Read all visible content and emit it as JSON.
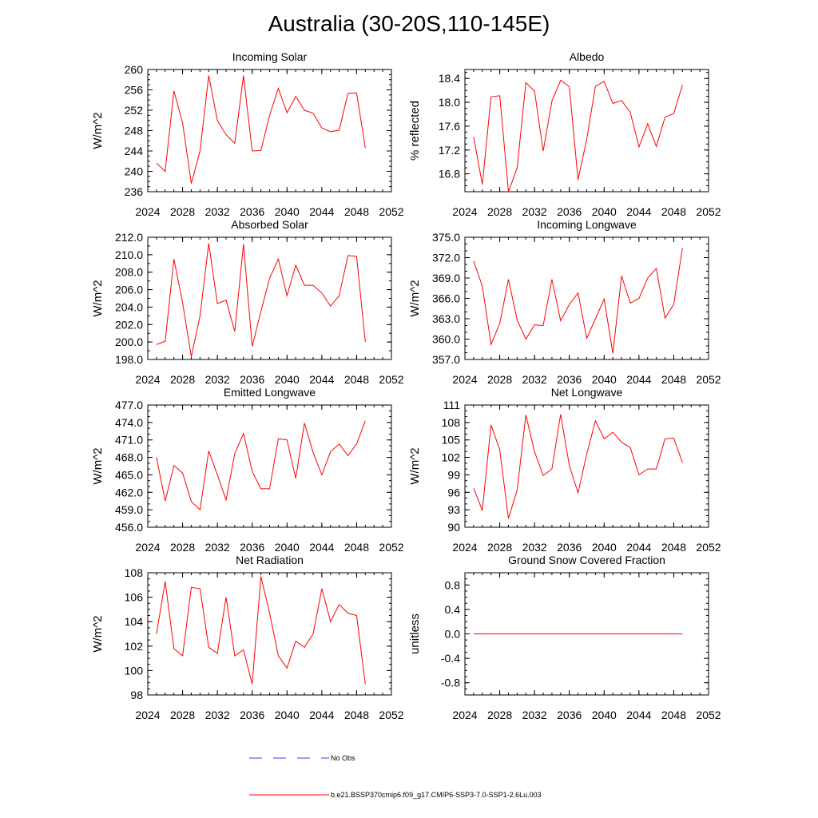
{
  "figure": {
    "title": "Australia (30-20S,110-145E)"
  },
  "legend": {
    "obs_label": "No Obs",
    "model_label": "b.e21.BSSP370cmip6.f09_g17.CMIP6-SSP3-7.0-SSP1-2.6Lu.003",
    "obs_color": "#3b3bff",
    "model_color": "#ff0000"
  },
  "chart_data": [
    {
      "type": "line",
      "title": "Incoming Solar",
      "ylabel": "W/m^2",
      "xlim": [
        2024,
        2052
      ],
      "ylim": [
        236,
        260
      ],
      "xticks": [
        2024,
        2028,
        2032,
        2036,
        2040,
        2044,
        2048,
        2052
      ],
      "yticks": [
        236,
        240,
        244,
        248,
        252,
        256,
        260
      ],
      "yminor": 1,
      "ydecimals": 0,
      "x": [
        2025,
        2026,
        2027,
        2028,
        2029,
        2030,
        2031,
        2032,
        2033,
        2034,
        2035,
        2036,
        2037,
        2038,
        2039,
        2040,
        2041,
        2042,
        2043,
        2044,
        2045,
        2046,
        2047,
        2048,
        2049
      ],
      "series": [
        {
          "values": [
            241.6,
            240.0,
            255.8,
            249.5,
            237.6,
            244.0,
            258.8,
            250.0,
            247.2,
            245.5,
            258.8,
            244.0,
            244.1,
            251.0,
            256.3,
            251.5,
            254.7,
            252.0,
            251.4,
            248.5,
            247.8,
            248.1,
            255.3,
            255.4,
            244.6
          ]
        }
      ]
    },
    {
      "type": "line",
      "title": "Albedo",
      "ylabel": "% reflected",
      "xlim": [
        2024,
        2052
      ],
      "ylim": [
        16.5,
        18.55
      ],
      "xticks": [
        2024,
        2028,
        2032,
        2036,
        2040,
        2044,
        2048,
        2052
      ],
      "yticks": [
        16.8,
        17.2,
        17.6,
        18.0,
        18.4
      ],
      "yminor": 0.1,
      "ydecimals": 1,
      "x": [
        2025,
        2026,
        2027,
        2028,
        2029,
        2030,
        2031,
        2032,
        2033,
        2034,
        2035,
        2036,
        2037,
        2038,
        2039,
        2040,
        2041,
        2042,
        2043,
        2044,
        2045,
        2046,
        2047,
        2048,
        2049
      ],
      "series": [
        {
          "values": [
            17.42,
            16.62,
            18.09,
            18.11,
            16.5,
            16.9,
            18.33,
            18.19,
            17.18,
            18.02,
            18.37,
            18.26,
            16.7,
            17.38,
            18.27,
            18.35,
            17.98,
            18.03,
            17.83,
            17.25,
            17.64,
            17.26,
            17.75,
            17.81,
            18.29
          ]
        }
      ]
    },
    {
      "type": "line",
      "title": "Absorbed Solar",
      "ylabel": "W/m^2",
      "xlim": [
        2024,
        2052
      ],
      "ylim": [
        198.0,
        212.0
      ],
      "xticks": [
        2024,
        2028,
        2032,
        2036,
        2040,
        2044,
        2048,
        2052
      ],
      "yticks": [
        198.0,
        200.0,
        202.0,
        204.0,
        206.0,
        208.0,
        210.0,
        212.0
      ],
      "yminor": 1,
      "ydecimals": 1,
      "x": [
        2025,
        2026,
        2027,
        2028,
        2029,
        2030,
        2031,
        2032,
        2033,
        2034,
        2035,
        2036,
        2037,
        2038,
        2039,
        2040,
        2041,
        2042,
        2043,
        2044,
        2045,
        2046,
        2047,
        2048,
        2049
      ],
      "series": [
        {
          "values": [
            199.7,
            200.1,
            209.5,
            204.5,
            198.3,
            203.0,
            211.3,
            204.4,
            204.8,
            201.2,
            211.2,
            199.5,
            203.5,
            207.3,
            209.5,
            205.3,
            208.8,
            206.5,
            206.5,
            205.6,
            204.1,
            205.3,
            209.9,
            209.8,
            200.0
          ]
        }
      ]
    },
    {
      "type": "line",
      "title": "Incoming Longwave",
      "ylabel": "W/m^2",
      "xlim": [
        2024,
        2052
      ],
      "ylim": [
        357.0,
        375.0
      ],
      "xticks": [
        2024,
        2028,
        2032,
        2036,
        2040,
        2044,
        2048,
        2052
      ],
      "yticks": [
        357.0,
        360.0,
        363.0,
        366.0,
        369.0,
        372.0,
        375.0
      ],
      "yminor": 1,
      "ydecimals": 1,
      "x": [
        2025,
        2026,
        2027,
        2028,
        2029,
        2030,
        2031,
        2032,
        2033,
        2034,
        2035,
        2036,
        2037,
        2038,
        2039,
        2040,
        2041,
        2042,
        2043,
        2044,
        2045,
        2046,
        2047,
        2048,
        2049
      ],
      "series": [
        {
          "values": [
            371.5,
            367.8,
            359.2,
            362.3,
            368.8,
            362.8,
            360.0,
            362.1,
            362.0,
            368.8,
            362.7,
            365.1,
            366.8,
            360.1,
            363.0,
            365.9,
            357.9,
            369.3,
            365.3,
            366.0,
            369.0,
            370.4,
            363.1,
            365.1,
            373.4
          ]
        }
      ]
    },
    {
      "type": "line",
      "title": "Emitted Longwave",
      "ylabel": "W/m^2",
      "xlim": [
        2024,
        2052
      ],
      "ylim": [
        456.0,
        477.0
      ],
      "xticks": [
        2024,
        2028,
        2032,
        2036,
        2040,
        2044,
        2048,
        2052
      ],
      "yticks": [
        456.0,
        459.0,
        462.0,
        465.0,
        468.0,
        471.0,
        474.0,
        477.0
      ],
      "yminor": 1,
      "ydecimals": 1,
      "x": [
        2025,
        2026,
        2027,
        2028,
        2029,
        2030,
        2031,
        2032,
        2033,
        2034,
        2035,
        2036,
        2037,
        2038,
        2039,
        2040,
        2041,
        2042,
        2043,
        2044,
        2045,
        2046,
        2047,
        2048,
        2049
      ],
      "series": [
        {
          "values": [
            468.0,
            460.5,
            466.6,
            465.3,
            460.4,
            459.0,
            469.1,
            465.0,
            460.7,
            468.7,
            472.1,
            465.6,
            462.6,
            462.6,
            471.2,
            471.0,
            464.4,
            473.9,
            468.8,
            465.0,
            469.0,
            470.3,
            468.3,
            470.3,
            474.3
          ]
        }
      ]
    },
    {
      "type": "line",
      "title": "Net Longwave",
      "ylabel": "W/m^2",
      "xlim": [
        2024,
        2052
      ],
      "ylim": [
        90,
        111
      ],
      "xticks": [
        2024,
        2028,
        2032,
        2036,
        2040,
        2044,
        2048,
        2052
      ],
      "yticks": [
        90,
        93,
        96,
        99,
        102,
        105,
        108,
        111
      ],
      "yminor": 1,
      "ydecimals": 0,
      "x": [
        2025,
        2026,
        2027,
        2028,
        2029,
        2030,
        2031,
        2032,
        2033,
        2034,
        2035,
        2036,
        2037,
        2038,
        2039,
        2040,
        2041,
        2042,
        2043,
        2044,
        2045,
        2046,
        2047,
        2048,
        2049
      ],
      "series": [
        {
          "values": [
            96.7,
            92.9,
            107.6,
            103.3,
            91.5,
            96.4,
            109.3,
            103.0,
            98.9,
            100.0,
            109.4,
            100.6,
            95.9,
            102.6,
            108.3,
            105.2,
            106.3,
            104.6,
            103.7,
            99.0,
            100.0,
            100.0,
            105.2,
            105.3,
            101.1
          ]
        }
      ]
    },
    {
      "type": "line",
      "title": "Net Radiation",
      "ylabel": "W/m^2",
      "xlim": [
        2024,
        2052
      ],
      "ylim": [
        98,
        108
      ],
      "xticks": [
        2024,
        2028,
        2032,
        2036,
        2040,
        2044,
        2048,
        2052
      ],
      "yticks": [
        98,
        100,
        102,
        104,
        106,
        108
      ],
      "yminor": 0.5,
      "ydecimals": 0,
      "x": [
        2025,
        2026,
        2027,
        2028,
        2029,
        2030,
        2031,
        2032,
        2033,
        2034,
        2035,
        2036,
        2037,
        2038,
        2039,
        2040,
        2041,
        2042,
        2043,
        2044,
        2045,
        2046,
        2047,
        2048,
        2049
      ],
      "series": [
        {
          "values": [
            103.0,
            107.3,
            101.8,
            101.2,
            106.8,
            106.7,
            101.9,
            101.4,
            106.0,
            101.2,
            101.7,
            98.9,
            107.7,
            104.7,
            101.2,
            100.2,
            102.4,
            101.9,
            103.0,
            106.7,
            104.0,
            105.4,
            104.7,
            104.5,
            98.9
          ]
        }
      ]
    },
    {
      "type": "line",
      "title": "Ground Snow Covered Fraction",
      "ylabel": "unitless",
      "xlim": [
        2024,
        2052
      ],
      "ylim": [
        -1.0,
        1.0
      ],
      "xticks": [
        2024,
        2028,
        2032,
        2036,
        2040,
        2044,
        2048,
        2052
      ],
      "yticks": [
        -0.8,
        -0.4,
        0.0,
        0.4,
        0.8
      ],
      "yminor": 0.1,
      "ydecimals": 1,
      "x": [
        2025,
        2026,
        2027,
        2028,
        2029,
        2030,
        2031,
        2032,
        2033,
        2034,
        2035,
        2036,
        2037,
        2038,
        2039,
        2040,
        2041,
        2042,
        2043,
        2044,
        2045,
        2046,
        2047,
        2048,
        2049
      ],
      "series": [
        {
          "values": [
            0,
            0,
            0,
            0,
            0,
            0,
            0,
            0,
            0,
            0,
            0,
            0,
            0,
            0,
            0,
            0,
            0,
            0,
            0,
            0,
            0,
            0,
            0,
            0,
            0
          ]
        }
      ]
    }
  ]
}
